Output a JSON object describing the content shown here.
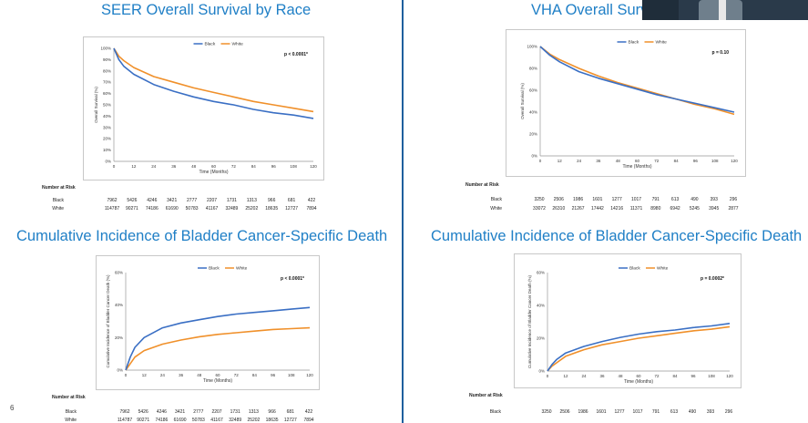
{
  "page": {
    "number": "6"
  },
  "colors": {
    "title": "#1f7fc6",
    "divider": "#1f5f9e",
    "black_series": "#3a6fc4",
    "white_series": "#f0902a"
  },
  "panels": [
    {
      "title": "SEER Overall Survival by Race",
      "risk": {
        "header": "Number at Risk",
        "rows": [
          {
            "label": "Black",
            "values": [
              "7962",
              "5426",
              "4246",
              "3421",
              "2777",
              "2207",
              "1731",
              "1313",
              "966",
              "681",
              "422"
            ]
          },
          {
            "label": "White",
            "values": [
              "114787",
              "90271",
              "74186",
              "61690",
              "50783",
              "41167",
              "32489",
              "25202",
              "18635",
              "12727",
              "7894"
            ]
          }
        ]
      }
    },
    {
      "title": "VHA Overall Surv",
      "risk": {
        "header": "Number at Risk",
        "rows": [
          {
            "label": "Black",
            "values": [
              "3250",
              "2506",
              "1986",
              "1601",
              "1277",
              "1017",
              "791",
              "613",
              "490",
              "393",
              "296"
            ]
          },
          {
            "label": "White",
            "values": [
              "33072",
              "26310",
              "21267",
              "17442",
              "14216",
              "11371",
              "8980",
              "6942",
              "5245",
              "3945",
              "2877"
            ]
          }
        ]
      }
    },
    {
      "title": "Cumulative Incidence of Bladder Cancer-Specific Death",
      "risk": {
        "header": "Number at Risk",
        "rows": [
          {
            "label": "Black",
            "values": [
              "7962",
              "5426",
              "4246",
              "3421",
              "2777",
              "2207",
              "1731",
              "1313",
              "966",
              "681",
              "422"
            ]
          },
          {
            "label": "White",
            "values": [
              "114787",
              "90271",
              "74186",
              "61690",
              "50783",
              "41167",
              "32489",
              "25202",
              "18635",
              "12727",
              "7894"
            ]
          }
        ]
      }
    },
    {
      "title": "Cumulative Incidence of Bladder Cancer-Specific Death",
      "risk": {
        "header": "Number at Risk",
        "rows": [
          {
            "label": "Black",
            "values": [
              "3250",
              "2506",
              "1986",
              "1601",
              "1277",
              "1017",
              "791",
              "613",
              "490",
              "393",
              "296"
            ]
          }
        ]
      }
    }
  ],
  "chart_data": [
    {
      "type": "line",
      "title": "SEER Overall Survival by Race",
      "xlabel": "Time (Months)",
      "ylabel": "Overall Survival (%)",
      "annotation": "p < 0.0001*",
      "xlim": [
        0,
        120
      ],
      "ylim": [
        0,
        100
      ],
      "x_ticks": [
        "0",
        "12",
        "24",
        "36",
        "48",
        "60",
        "72",
        "84",
        "96",
        "108",
        "120"
      ],
      "y_ticks": [
        "0%",
        "10%",
        "20%",
        "30%",
        "40%",
        "50%",
        "60%",
        "70%",
        "80%",
        "90%",
        "100%"
      ],
      "legend": "top-center",
      "grid": false,
      "series": [
        {
          "name": "Black",
          "color": "#3a6fc4",
          "x": [
            0,
            3,
            6,
            12,
            24,
            36,
            48,
            60,
            72,
            84,
            96,
            108,
            120
          ],
          "y": [
            100,
            90,
            84,
            77,
            68,
            62,
            57,
            53,
            50,
            46,
            43,
            41,
            38
          ]
        },
        {
          "name": "White",
          "color": "#f0902a",
          "x": [
            0,
            3,
            6,
            12,
            24,
            36,
            48,
            60,
            72,
            84,
            96,
            108,
            120
          ],
          "y": [
            100,
            93,
            89,
            83,
            75,
            70,
            65,
            61,
            57,
            53,
            50,
            47,
            44
          ]
        }
      ]
    },
    {
      "type": "line",
      "title": "VHA Overall Surv",
      "xlabel": "Time (Months)",
      "ylabel": "Overall Survival (%)",
      "annotation": "p = 0.10",
      "xlim": [
        0,
        120
      ],
      "ylim": [
        0,
        100
      ],
      "x_ticks": [
        "0",
        "12",
        "24",
        "36",
        "48",
        "60",
        "72",
        "84",
        "96",
        "108",
        "120"
      ],
      "y_ticks": [
        "0%",
        "20%",
        "40%",
        "60%",
        "80%",
        "100%"
      ],
      "legend": "top-center",
      "grid": false,
      "series": [
        {
          "name": "Black",
          "color": "#3a6fc4",
          "x": [
            0,
            6,
            12,
            24,
            36,
            48,
            60,
            72,
            84,
            96,
            108,
            120
          ],
          "y": [
            100,
            92,
            86,
            77,
            71,
            66,
            61,
            56,
            52,
            48,
            44,
            40
          ]
        },
        {
          "name": "White",
          "color": "#f0902a",
          "x": [
            0,
            6,
            12,
            24,
            36,
            48,
            60,
            72,
            84,
            96,
            108,
            120
          ],
          "y": [
            100,
            93,
            88,
            80,
            73,
            67,
            62,
            57,
            52,
            47,
            43,
            38
          ]
        }
      ]
    },
    {
      "type": "line",
      "title": "Cumulative Incidence of Bladder Cancer-Specific Death",
      "xlabel": "Time (Months)",
      "ylabel": "Cumulative Incidence of Bladder Cancer Death (%)",
      "annotation": "p < 0.0001*",
      "xlim": [
        0,
        120
      ],
      "ylim": [
        0,
        60
      ],
      "x_ticks": [
        "0",
        "12",
        "24",
        "36",
        "48",
        "60",
        "72",
        "84",
        "96",
        "108",
        "120"
      ],
      "y_ticks": [
        "0%",
        "20%",
        "40%",
        "60%"
      ],
      "legend": "top-center",
      "grid": false,
      "series": [
        {
          "name": "Black",
          "color": "#3a6fc4",
          "x": [
            0,
            3,
            6,
            12,
            24,
            36,
            48,
            60,
            72,
            84,
            96,
            108,
            120
          ],
          "y": [
            0,
            8,
            14,
            20,
            26,
            29,
            31,
            33,
            34.5,
            35.5,
            36.5,
            37.5,
            38.5
          ]
        },
        {
          "name": "White",
          "color": "#f0902a",
          "x": [
            0,
            3,
            6,
            12,
            24,
            36,
            48,
            60,
            72,
            84,
            96,
            108,
            120
          ],
          "y": [
            0,
            4,
            8,
            12,
            16,
            18.5,
            20.5,
            22,
            23,
            24,
            25,
            25.5,
            26
          ]
        }
      ]
    },
    {
      "type": "line",
      "title": "Cumulative Incidence of Bladder Cancer-Specific Death",
      "xlabel": "Time (Months)",
      "ylabel": "Cumulative Incidence of Bladder Cancer Death (%)",
      "annotation": "p = 0.0002*",
      "xlim": [
        0,
        120
      ],
      "ylim": [
        0,
        60
      ],
      "x_ticks": [
        "0",
        "12",
        "24",
        "36",
        "48",
        "60",
        "72",
        "84",
        "96",
        "108",
        "120"
      ],
      "y_ticks": [
        "0%",
        "20%",
        "40%",
        "60%"
      ],
      "legend": "top-center",
      "grid": false,
      "series": [
        {
          "name": "Black",
          "color": "#3a6fc4",
          "x": [
            0,
            3,
            6,
            12,
            24,
            36,
            48,
            60,
            72,
            84,
            96,
            108,
            120
          ],
          "y": [
            0,
            4,
            7,
            11,
            15,
            18,
            20.5,
            22.5,
            24,
            25,
            26.5,
            27.5,
            29
          ]
        },
        {
          "name": "White",
          "color": "#f0902a",
          "x": [
            0,
            3,
            6,
            12,
            24,
            36,
            48,
            60,
            72,
            84,
            96,
            108,
            120
          ],
          "y": [
            0,
            3,
            5,
            9,
            13,
            16,
            18,
            20,
            21.5,
            23,
            24.5,
            25.5,
            27
          ]
        }
      ]
    }
  ]
}
